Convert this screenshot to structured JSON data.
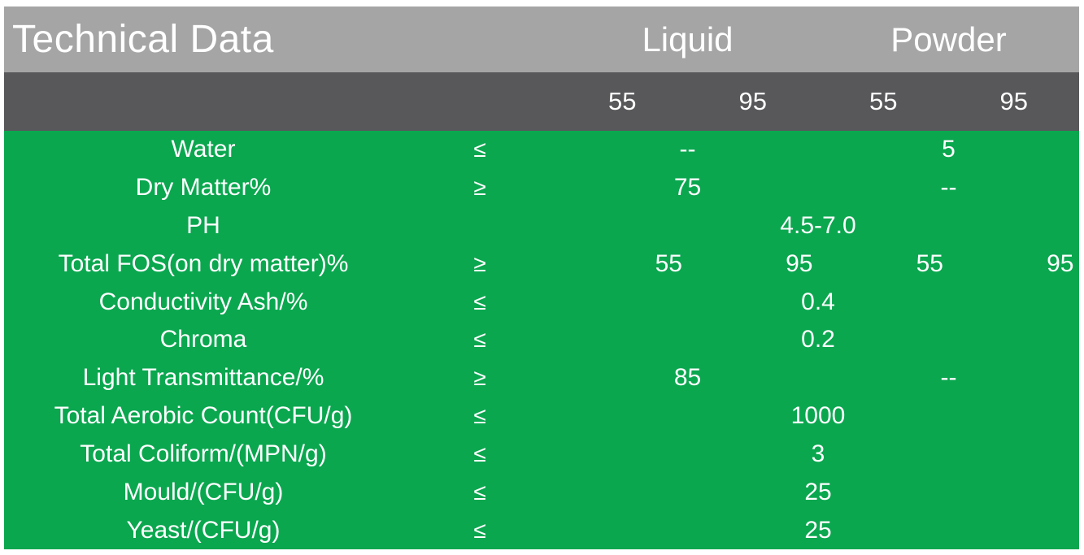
{
  "header": {
    "title": "Technical Data",
    "groups": [
      {
        "label": "Liquid"
      },
      {
        "label": "Powder"
      }
    ]
  },
  "subheader": {
    "columns": [
      "55",
      "95",
      "55",
      "95"
    ]
  },
  "rows": [
    {
      "label": "Water",
      "symbol": "≤",
      "values": [
        {
          "col": "liquid",
          "text": "--"
        },
        {
          "col": "powder",
          "text": "5"
        }
      ]
    },
    {
      "label": "Dry Matter%",
      "symbol": "≥",
      "values": [
        {
          "col": "liquid",
          "text": "75"
        },
        {
          "col": "powder",
          "text": "--"
        }
      ]
    },
    {
      "label": "PH",
      "symbol": "",
      "values": [
        {
          "col": "all",
          "text": "4.5-7.0"
        }
      ]
    },
    {
      "label": "Total FOS(on dry matter)%",
      "symbol": "≥",
      "values": [
        {
          "col": "liquid-55",
          "text": "55"
        },
        {
          "col": "liquid-95",
          "text": "95"
        },
        {
          "col": "powder-55",
          "text": "55"
        },
        {
          "col": "powder-95",
          "text": "95"
        }
      ]
    },
    {
      "label": "Conductivity Ash/%",
      "symbol": "≤",
      "values": [
        {
          "col": "all",
          "text": "0.4"
        }
      ]
    },
    {
      "label": "Chroma",
      "symbol": "≤",
      "values": [
        {
          "col": "all",
          "text": "0.2"
        }
      ]
    },
    {
      "label": "Light Transmittance/%",
      "symbol": "≥",
      "values": [
        {
          "col": "liquid",
          "text": "85"
        },
        {
          "col": "powder",
          "text": "--"
        }
      ]
    },
    {
      "label": "Total Aerobic Count(CFU/g)",
      "symbol": "≤",
      "values": [
        {
          "col": "all",
          "text": "1000"
        }
      ]
    },
    {
      "label": "Total Coliform/(MPN/g)",
      "symbol": "≤",
      "values": [
        {
          "col": "all",
          "text": "3"
        }
      ]
    },
    {
      "label": "Mould/(CFU/g)",
      "symbol": "≤",
      "values": [
        {
          "col": "all",
          "text": "25"
        }
      ]
    },
    {
      "label": "Yeast/(CFU/g)",
      "symbol": "≤",
      "values": [
        {
          "col": "all",
          "text": "25"
        }
      ]
    }
  ],
  "colors": {
    "header_bg": "#a5a5a6",
    "subheader_bg": "#58585a",
    "body_bg": "#0aa74f",
    "text": "#ffffff"
  }
}
